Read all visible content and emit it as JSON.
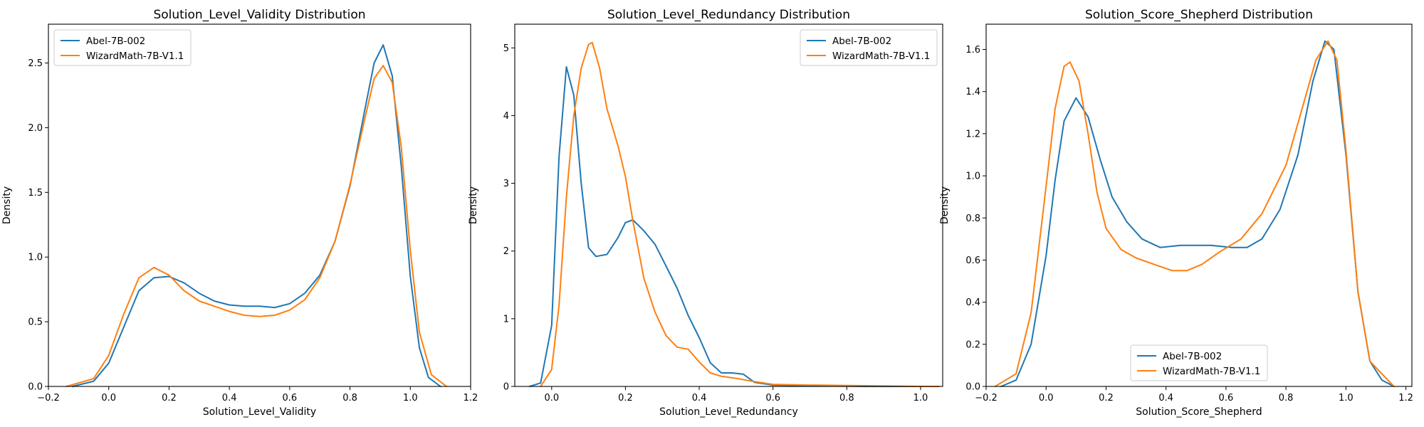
{
  "colors": {
    "series_0": "#1f77b4",
    "series_1": "#ff7f0e"
  },
  "chart_data": [
    {
      "type": "line",
      "title": "Solution_Level_Validity Distribution",
      "xlabel": "Solution_Level_Validity",
      "ylabel": "Density",
      "xlim": [
        -0.2,
        1.2
      ],
      "ylim": [
        0,
        2.8
      ],
      "xticks": [
        -0.2,
        0.0,
        0.2,
        0.4,
        0.6,
        0.8,
        1.0,
        1.2
      ],
      "xtick_labels": [
        "−0.2",
        "0.0",
        "0.2",
        "0.4",
        "0.6",
        "0.8",
        "1.0",
        "1.2"
      ],
      "yticks": [
        0.0,
        0.5,
        1.0,
        1.5,
        2.0,
        2.5
      ],
      "ytick_labels": [
        "0.0",
        "0.5",
        "1.0",
        "1.5",
        "2.0",
        "2.5"
      ],
      "legend": "upper-left",
      "grid": false,
      "series": [
        {
          "name": "Abel-7B-002",
          "x": [
            -0.12,
            -0.05,
            0.0,
            0.05,
            0.1,
            0.15,
            0.2,
            0.25,
            0.3,
            0.35,
            0.4,
            0.45,
            0.5,
            0.55,
            0.6,
            0.65,
            0.7,
            0.75,
            0.8,
            0.85,
            0.88,
            0.91,
            0.94,
            0.97,
            1.0,
            1.03,
            1.06,
            1.1
          ],
          "y": [
            0.0,
            0.04,
            0.18,
            0.46,
            0.74,
            0.84,
            0.85,
            0.8,
            0.72,
            0.66,
            0.63,
            0.62,
            0.62,
            0.61,
            0.64,
            0.72,
            0.86,
            1.12,
            1.55,
            2.15,
            2.5,
            2.64,
            2.4,
            1.7,
            0.85,
            0.3,
            0.07,
            0.0
          ]
        },
        {
          "name": "WizardMath-7B-V1.1",
          "x": [
            -0.14,
            -0.05,
            0.0,
            0.05,
            0.1,
            0.15,
            0.2,
            0.25,
            0.3,
            0.35,
            0.4,
            0.45,
            0.5,
            0.55,
            0.6,
            0.65,
            0.7,
            0.75,
            0.8,
            0.85,
            0.88,
            0.91,
            0.94,
            0.97,
            1.0,
            1.03,
            1.07,
            1.12
          ],
          "y": [
            0.0,
            0.06,
            0.24,
            0.56,
            0.84,
            0.92,
            0.86,
            0.74,
            0.66,
            0.62,
            0.58,
            0.55,
            0.54,
            0.55,
            0.59,
            0.67,
            0.84,
            1.12,
            1.56,
            2.08,
            2.38,
            2.48,
            2.35,
            1.85,
            1.05,
            0.42,
            0.09,
            0.0
          ]
        }
      ]
    },
    {
      "type": "line",
      "title": "Solution_Level_Redundancy Distribution",
      "xlabel": "Solution_Level_Redundancy",
      "ylabel": "Density",
      "xlim": [
        -0.1,
        1.06
      ],
      "ylim": [
        0,
        5.35
      ],
      "xticks": [
        0.0,
        0.2,
        0.4,
        0.6,
        0.8,
        1.0
      ],
      "xtick_labels": [
        "0.0",
        "0.2",
        "0.4",
        "0.6",
        "0.8",
        "1.0"
      ],
      "yticks": [
        0,
        1,
        2,
        3,
        4,
        5
      ],
      "ytick_labels": [
        "0",
        "1",
        "2",
        "3",
        "4",
        "5"
      ],
      "legend": "upper-right",
      "grid": false,
      "series": [
        {
          "name": "Abel-7B-002",
          "x": [
            -0.06,
            -0.03,
            0.0,
            0.02,
            0.04,
            0.06,
            0.08,
            0.1,
            0.12,
            0.15,
            0.18,
            0.2,
            0.22,
            0.25,
            0.28,
            0.31,
            0.34,
            0.37,
            0.4,
            0.43,
            0.46,
            0.49,
            0.52,
            0.55,
            0.6,
            0.7,
            0.85,
            1.0
          ],
          "y": [
            0.0,
            0.05,
            0.9,
            3.4,
            4.72,
            4.3,
            3.0,
            2.05,
            1.92,
            1.95,
            2.2,
            2.42,
            2.46,
            2.3,
            2.1,
            1.78,
            1.45,
            1.05,
            0.72,
            0.35,
            0.2,
            0.2,
            0.18,
            0.06,
            0.02,
            0.01,
            0.0,
            0.0
          ]
        },
        {
          "name": "WizardMath-7B-V1.1",
          "x": [
            -0.03,
            0.0,
            0.02,
            0.04,
            0.06,
            0.08,
            0.1,
            0.11,
            0.13,
            0.15,
            0.18,
            0.2,
            0.22,
            0.25,
            0.28,
            0.31,
            0.34,
            0.37,
            0.4,
            0.43,
            0.46,
            0.5,
            0.55,
            0.6,
            0.7,
            0.85,
            1.0,
            1.05
          ],
          "y": [
            0.0,
            0.25,
            1.2,
            2.8,
            4.0,
            4.7,
            5.05,
            5.08,
            4.7,
            4.1,
            3.55,
            3.1,
            2.45,
            1.6,
            1.1,
            0.75,
            0.58,
            0.55,
            0.36,
            0.2,
            0.15,
            0.12,
            0.07,
            0.03,
            0.02,
            0.01,
            0.0,
            0.0
          ]
        }
      ]
    },
    {
      "type": "line",
      "title": "Solution_Score_Shepherd Distribution",
      "xlabel": "Solution_Score_Shepherd",
      "ylabel": "Density",
      "xlim": [
        -0.2,
        1.22
      ],
      "ylim": [
        0,
        1.72
      ],
      "xticks": [
        -0.2,
        0.0,
        0.2,
        0.4,
        0.6,
        0.8,
        1.0,
        1.2
      ],
      "xtick_labels": [
        "−0.2",
        "0.0",
        "0.2",
        "0.4",
        "0.6",
        "0.8",
        "1.0",
        "1.2"
      ],
      "yticks": [
        0.0,
        0.2,
        0.4,
        0.6,
        0.8,
        1.0,
        1.2,
        1.4,
        1.6
      ],
      "ytick_labels": [
        "0.0",
        "0.2",
        "0.4",
        "0.6",
        "0.8",
        "1.0",
        "1.2",
        "1.4",
        "1.6"
      ],
      "legend": "lower-center",
      "grid": false,
      "series": [
        {
          "name": "Abel-7B-002",
          "x": [
            -0.15,
            -0.1,
            -0.05,
            0.0,
            0.03,
            0.06,
            0.1,
            0.14,
            0.18,
            0.22,
            0.27,
            0.32,
            0.38,
            0.45,
            0.55,
            0.62,
            0.67,
            0.72,
            0.78,
            0.84,
            0.89,
            0.93,
            0.96,
            1.0,
            1.04,
            1.08,
            1.12,
            1.16
          ],
          "y": [
            0.0,
            0.03,
            0.2,
            0.62,
            0.98,
            1.26,
            1.37,
            1.28,
            1.08,
            0.9,
            0.78,
            0.7,
            0.66,
            0.67,
            0.67,
            0.66,
            0.66,
            0.7,
            0.84,
            1.1,
            1.45,
            1.64,
            1.6,
            1.1,
            0.45,
            0.12,
            0.03,
            0.0
          ]
        },
        {
          "name": "WizardMath-7B-V1.1",
          "x": [
            -0.17,
            -0.1,
            -0.05,
            0.0,
            0.03,
            0.06,
            0.08,
            0.11,
            0.14,
            0.17,
            0.2,
            0.25,
            0.3,
            0.36,
            0.42,
            0.47,
            0.52,
            0.58,
            0.65,
            0.72,
            0.8,
            0.86,
            0.9,
            0.94,
            0.97,
            1.0,
            1.04,
            1.08,
            1.16
          ],
          "y": [
            0.0,
            0.06,
            0.35,
            0.95,
            1.32,
            1.52,
            1.54,
            1.45,
            1.2,
            0.92,
            0.75,
            0.65,
            0.61,
            0.58,
            0.55,
            0.55,
            0.58,
            0.64,
            0.7,
            0.82,
            1.05,
            1.35,
            1.55,
            1.64,
            1.55,
            1.12,
            0.45,
            0.12,
            0.0
          ]
        }
      ]
    }
  ]
}
